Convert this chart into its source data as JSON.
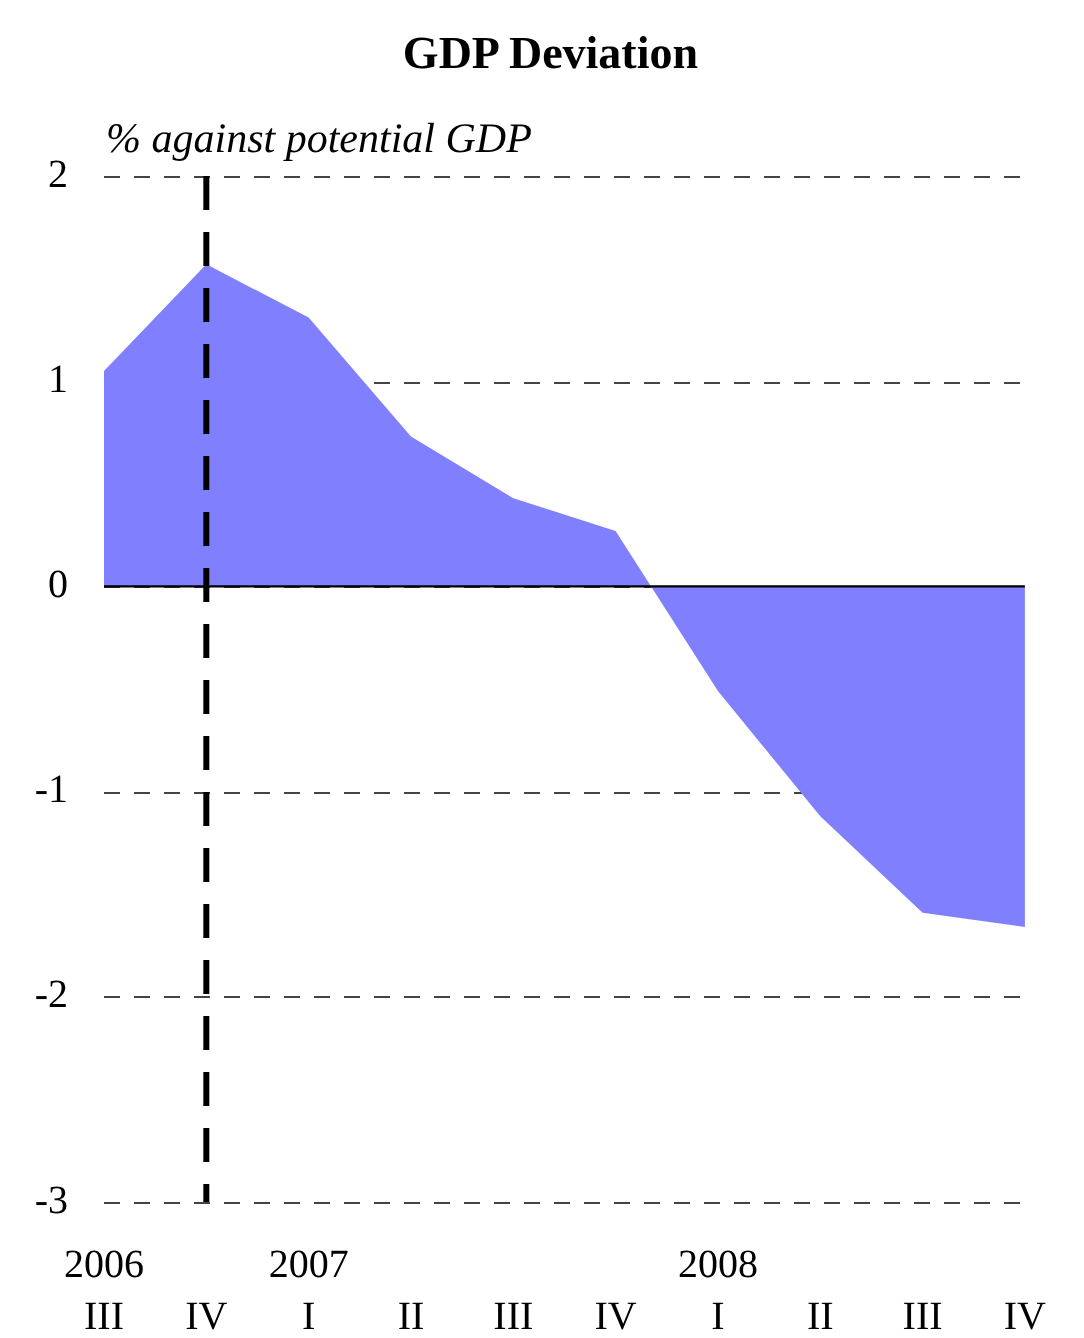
{
  "chart_data": {
    "type": "area",
    "title": "GDP Deviation",
    "ylabel": "% against potential GDP",
    "categories": [
      "2006\nIII",
      "IV",
      "2007\nI",
      "II",
      "III",
      "IV",
      "2008\nI",
      "II",
      "III",
      "IV"
    ],
    "values": [
      1.05,
      1.57,
      1.31,
      0.73,
      0.43,
      0.27,
      -0.51,
      -1.12,
      -1.59,
      -1.66
    ],
    "color": "#8080ff",
    "ylim": [
      -3,
      2
    ],
    "yticks": [
      -3,
      -2,
      -1,
      0,
      1,
      2
    ],
    "grid": "y",
    "ref_lines": [
      {
        "axis": "x",
        "value": "IV",
        "color": "#000000",
        "line_style": "dashed"
      }
    ]
  }
}
